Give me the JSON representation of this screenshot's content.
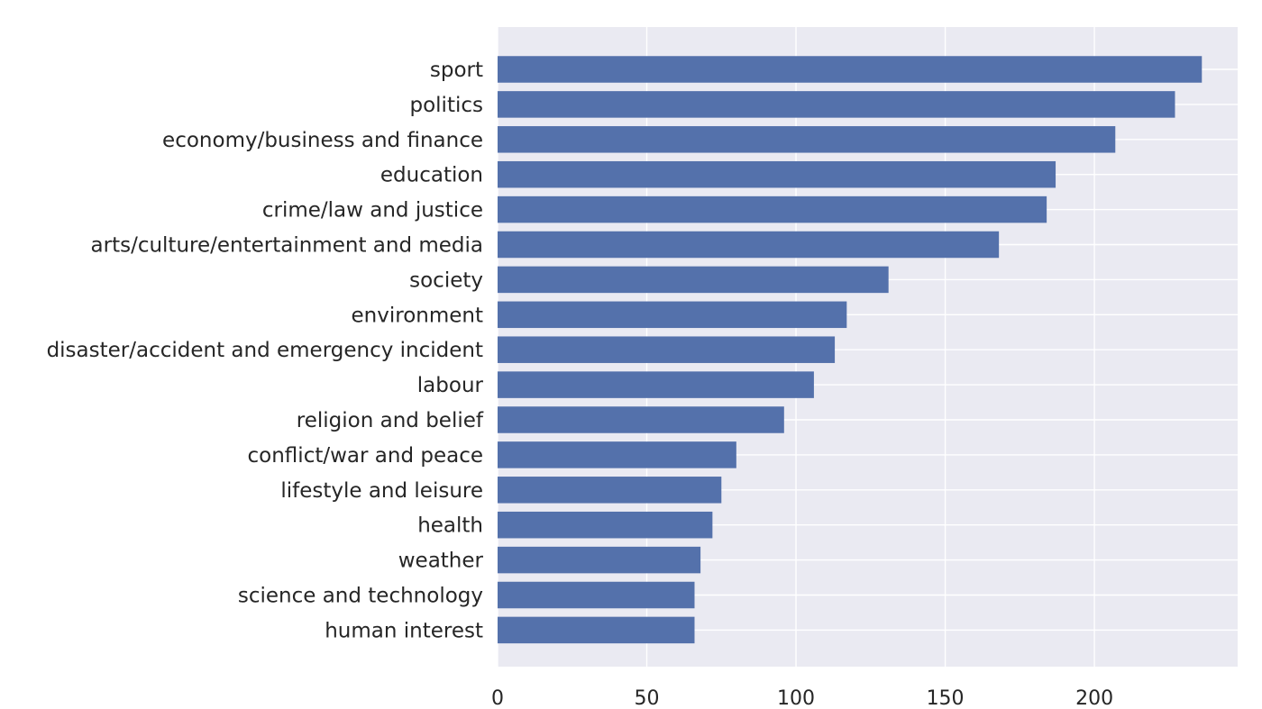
{
  "chart_data": {
    "type": "bar",
    "orientation": "horizontal",
    "title": "",
    "xlabel": "",
    "ylabel": "",
    "categories": [
      "sport",
      "politics",
      "economy/business and finance",
      "education",
      "crime/law and justice",
      "arts/culture/entertainment and media",
      "society",
      "environment",
      "disaster/accident and emergency incident",
      "labour",
      "religion and belief",
      "conflict/war and peace",
      "lifestyle and leisure",
      "health",
      "weather",
      "science and technology",
      "human interest"
    ],
    "values": [
      236,
      227,
      207,
      187,
      184,
      168,
      131,
      117,
      113,
      106,
      96,
      80,
      75,
      72,
      68,
      66,
      66
    ],
    "xlim": [
      0,
      248
    ],
    "xticks": [
      0,
      50,
      100,
      150,
      200
    ],
    "grid": true,
    "legend": "none",
    "colors": {
      "bar": "#5471ab",
      "background": "#eaeaf2",
      "grid": "#ffffff",
      "text": "#262626"
    }
  }
}
